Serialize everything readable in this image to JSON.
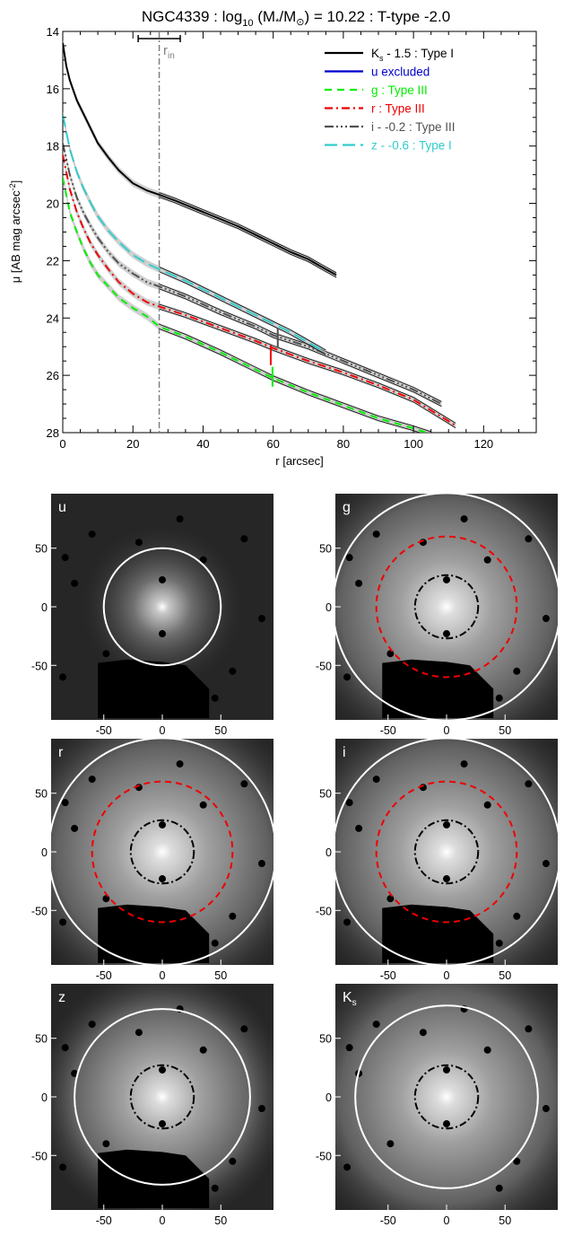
{
  "chart_data": [
    {
      "type": "line",
      "title_main": "NGC4339 : log",
      "title_sub": "10",
      "title_rest": " (M",
      "title_star": "*",
      "title_slash": "/M",
      "title_sun": "⊙",
      "title_end": ") = 10.22 : T-type -2.0",
      "xlabel": "r [arcsec]",
      "ylabel_main": "μ [AB mag arcsec",
      "ylabel_sup": "-2",
      "ylabel_end": "]",
      "xlim": [
        0,
        135
      ],
      "ylim": [
        28,
        14
      ],
      "xticks": [
        "0",
        "20",
        "40",
        "60",
        "80",
        "100",
        "120"
      ],
      "yticks": [
        "14",
        "16",
        "18",
        "20",
        "22",
        "24",
        "26",
        "28"
      ],
      "r_in": 27.5,
      "r_in_label": "r",
      "r_in_sub": "in",
      "r_in_err": [
        21.5,
        33.5
      ],
      "legend_position": "top-right",
      "series": [
        {
          "key": "ks",
          "name": "K",
          "sub": "s",
          "name_rest": " - 1.5 : Type I",
          "color": "#000000",
          "dash": "",
          "x": [
            0,
            1,
            2,
            4,
            6,
            8,
            10,
            13,
            16,
            20,
            24,
            27.5,
            32,
            36,
            40,
            45,
            50,
            55,
            60,
            65,
            70,
            75,
            78
          ],
          "y": [
            14.4,
            15.2,
            15.7,
            16.4,
            16.9,
            17.4,
            17.9,
            18.4,
            18.85,
            19.3,
            19.55,
            19.7,
            19.9,
            20.1,
            20.3,
            20.55,
            20.8,
            21.1,
            21.4,
            21.7,
            21.95,
            22.3,
            22.5
          ]
        },
        {
          "key": "u",
          "name": "u excluded",
          "color": "#0000cc",
          "dash": "",
          "x": [],
          "y": []
        },
        {
          "key": "g",
          "name": "g : Type III",
          "color": "#00ee00",
          "dash": "8,6",
          "x": [
            0,
            2,
            4,
            6,
            8,
            10,
            13,
            16,
            20,
            24,
            27.5,
            35,
            45,
            55,
            60,
            70,
            80,
            90,
            100,
            105
          ],
          "y": [
            19.1,
            20.3,
            21.0,
            21.6,
            22.1,
            22.5,
            22.9,
            23.3,
            23.65,
            23.95,
            24.3,
            24.65,
            25.2,
            25.8,
            26.1,
            26.6,
            27.05,
            27.5,
            27.85,
            28.05
          ]
        },
        {
          "key": "r",
          "name": "r : Type III",
          "color": "#ee0000",
          "dash": "9,4,2,4",
          "x": [
            0,
            2,
            4,
            6,
            8,
            10,
            13,
            16,
            20,
            24,
            27.5,
            35,
            45,
            55,
            60,
            70,
            80,
            90,
            100,
            112
          ],
          "y": [
            18.3,
            19.5,
            20.3,
            20.9,
            21.4,
            21.8,
            22.3,
            22.75,
            23.15,
            23.45,
            23.6,
            23.9,
            24.35,
            24.8,
            25.05,
            25.5,
            25.9,
            26.35,
            26.85,
            27.75
          ]
        },
        {
          "key": "i",
          "name": "i - -0.2 : Type III",
          "color": "#505050",
          "dash": "10,3,2,3,2,3,2,3",
          "x": [
            0,
            2,
            4,
            6,
            8,
            10,
            13,
            16,
            20,
            24,
            27.5,
            35,
            45,
            55,
            60,
            70,
            80,
            90,
            100,
            108
          ],
          "y": [
            17.9,
            19.0,
            19.8,
            20.35,
            20.8,
            21.2,
            21.7,
            22.1,
            22.45,
            22.75,
            22.9,
            23.25,
            23.8,
            24.3,
            24.6,
            25.0,
            25.5,
            26.0,
            26.5,
            27.0
          ]
        },
        {
          "key": "z",
          "name": "z - -0.6 : Type I",
          "color": "#33cccc",
          "dash": "14,6",
          "x": [
            0,
            2,
            4,
            6,
            8,
            10,
            13,
            16,
            20,
            24,
            27.5,
            35,
            45,
            55,
            60,
            65,
            70,
            75
          ],
          "y": [
            16.9,
            18.1,
            18.9,
            19.5,
            20.0,
            20.45,
            20.95,
            21.35,
            21.8,
            22.1,
            22.3,
            22.7,
            23.3,
            23.9,
            24.2,
            24.5,
            24.85,
            25.2
          ]
        }
      ],
      "break_marks": [
        {
          "series": "i",
          "x": 61.3,
          "y": 24.7
        },
        {
          "series": "r",
          "x": 59.3,
          "y": 25.3
        },
        {
          "series": "g",
          "x": 59.8,
          "y": 26.05
        }
      ]
    },
    {
      "type": "image_grid",
      "panels": [
        {
          "label": "u",
          "sub": "",
          "outer_r": 50,
          "outer_color": "#ffffff",
          "outer_dash": "",
          "mid_r": 0,
          "inner_r": 0,
          "mask": true
        },
        {
          "label": "g",
          "sub": "",
          "outer_r": 97,
          "outer_color": "#ffffff",
          "outer_dash": "",
          "mid_r": 60,
          "inner_r": 27,
          "mask": true
        },
        {
          "label": "r",
          "sub": "",
          "outer_r": 97,
          "outer_color": "#ffffff",
          "outer_dash": "",
          "mid_r": 60,
          "inner_r": 27,
          "mask": true
        },
        {
          "label": "i",
          "sub": "",
          "outer_r": 97,
          "outer_color": "#ffffff",
          "outer_dash": "",
          "mid_r": 60,
          "inner_r": 27,
          "mask": true
        },
        {
          "label": "z",
          "sub": "",
          "outer_r": 75,
          "outer_color": "#ffffff",
          "outer_dash": "",
          "mid_r": 0,
          "inner_r": 27,
          "mask": true
        },
        {
          "label": "K",
          "sub": "s",
          "outer_r": 78,
          "outer_color": "#ffffff",
          "outer_dash": "",
          "mid_r": 0,
          "inner_r": 27,
          "mask": false
        }
      ],
      "xticks": [
        "-50",
        "0",
        "50"
      ],
      "yticks": [
        "50",
        "0",
        "-50"
      ],
      "range": [
        -95,
        95
      ]
    }
  ]
}
